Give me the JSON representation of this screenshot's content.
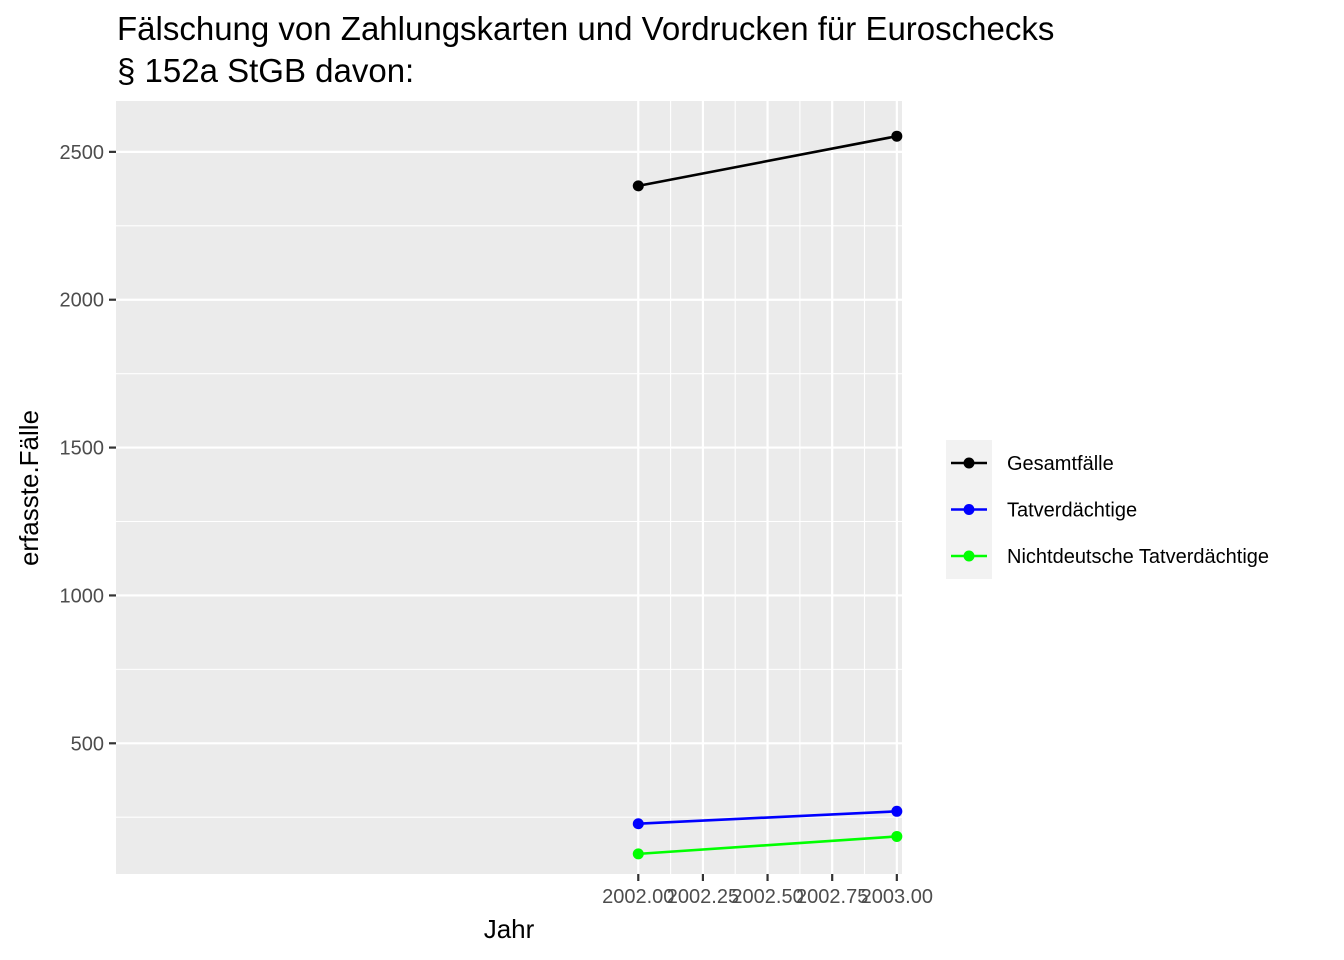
{
  "chart_data": {
    "type": "line",
    "title_lines": [
      "Fälschung von Zahlungskarten und Vordrucken für Euroschecks",
      "§ 152a StGB davon:"
    ],
    "xlabel": "Jahr",
    "ylabel": "erfasste.Fälle",
    "xlim": [
      1999.98,
      2003.02
    ],
    "ylim": [
      58,
      2672
    ],
    "x_ticks": [
      2002.0,
      2002.25,
      2002.5,
      2002.75,
      2003.0
    ],
    "x_tick_labels": [
      "2002.00",
      "2002.25",
      "2002.50",
      "2002.75",
      "2003.00"
    ],
    "y_ticks": [
      500,
      1000,
      1500,
      2000,
      2500
    ],
    "y_tick_labels": [
      "500",
      "1000",
      "1500",
      "2000",
      "2500"
    ],
    "grid": true,
    "legend_position": "right",
    "x": [
      2002,
      2003
    ],
    "series": [
      {
        "name": "Gesamtfälle",
        "color": "#000000",
        "values": [
          2385,
          2553
        ]
      },
      {
        "name": "Tatverdächtige",
        "color": "#0000ff",
        "values": [
          228,
          270
        ]
      },
      {
        "name": "Nichtdeutsche Tatverdächtige",
        "color": "#00ff00",
        "values": [
          126,
          185
        ]
      }
    ]
  }
}
